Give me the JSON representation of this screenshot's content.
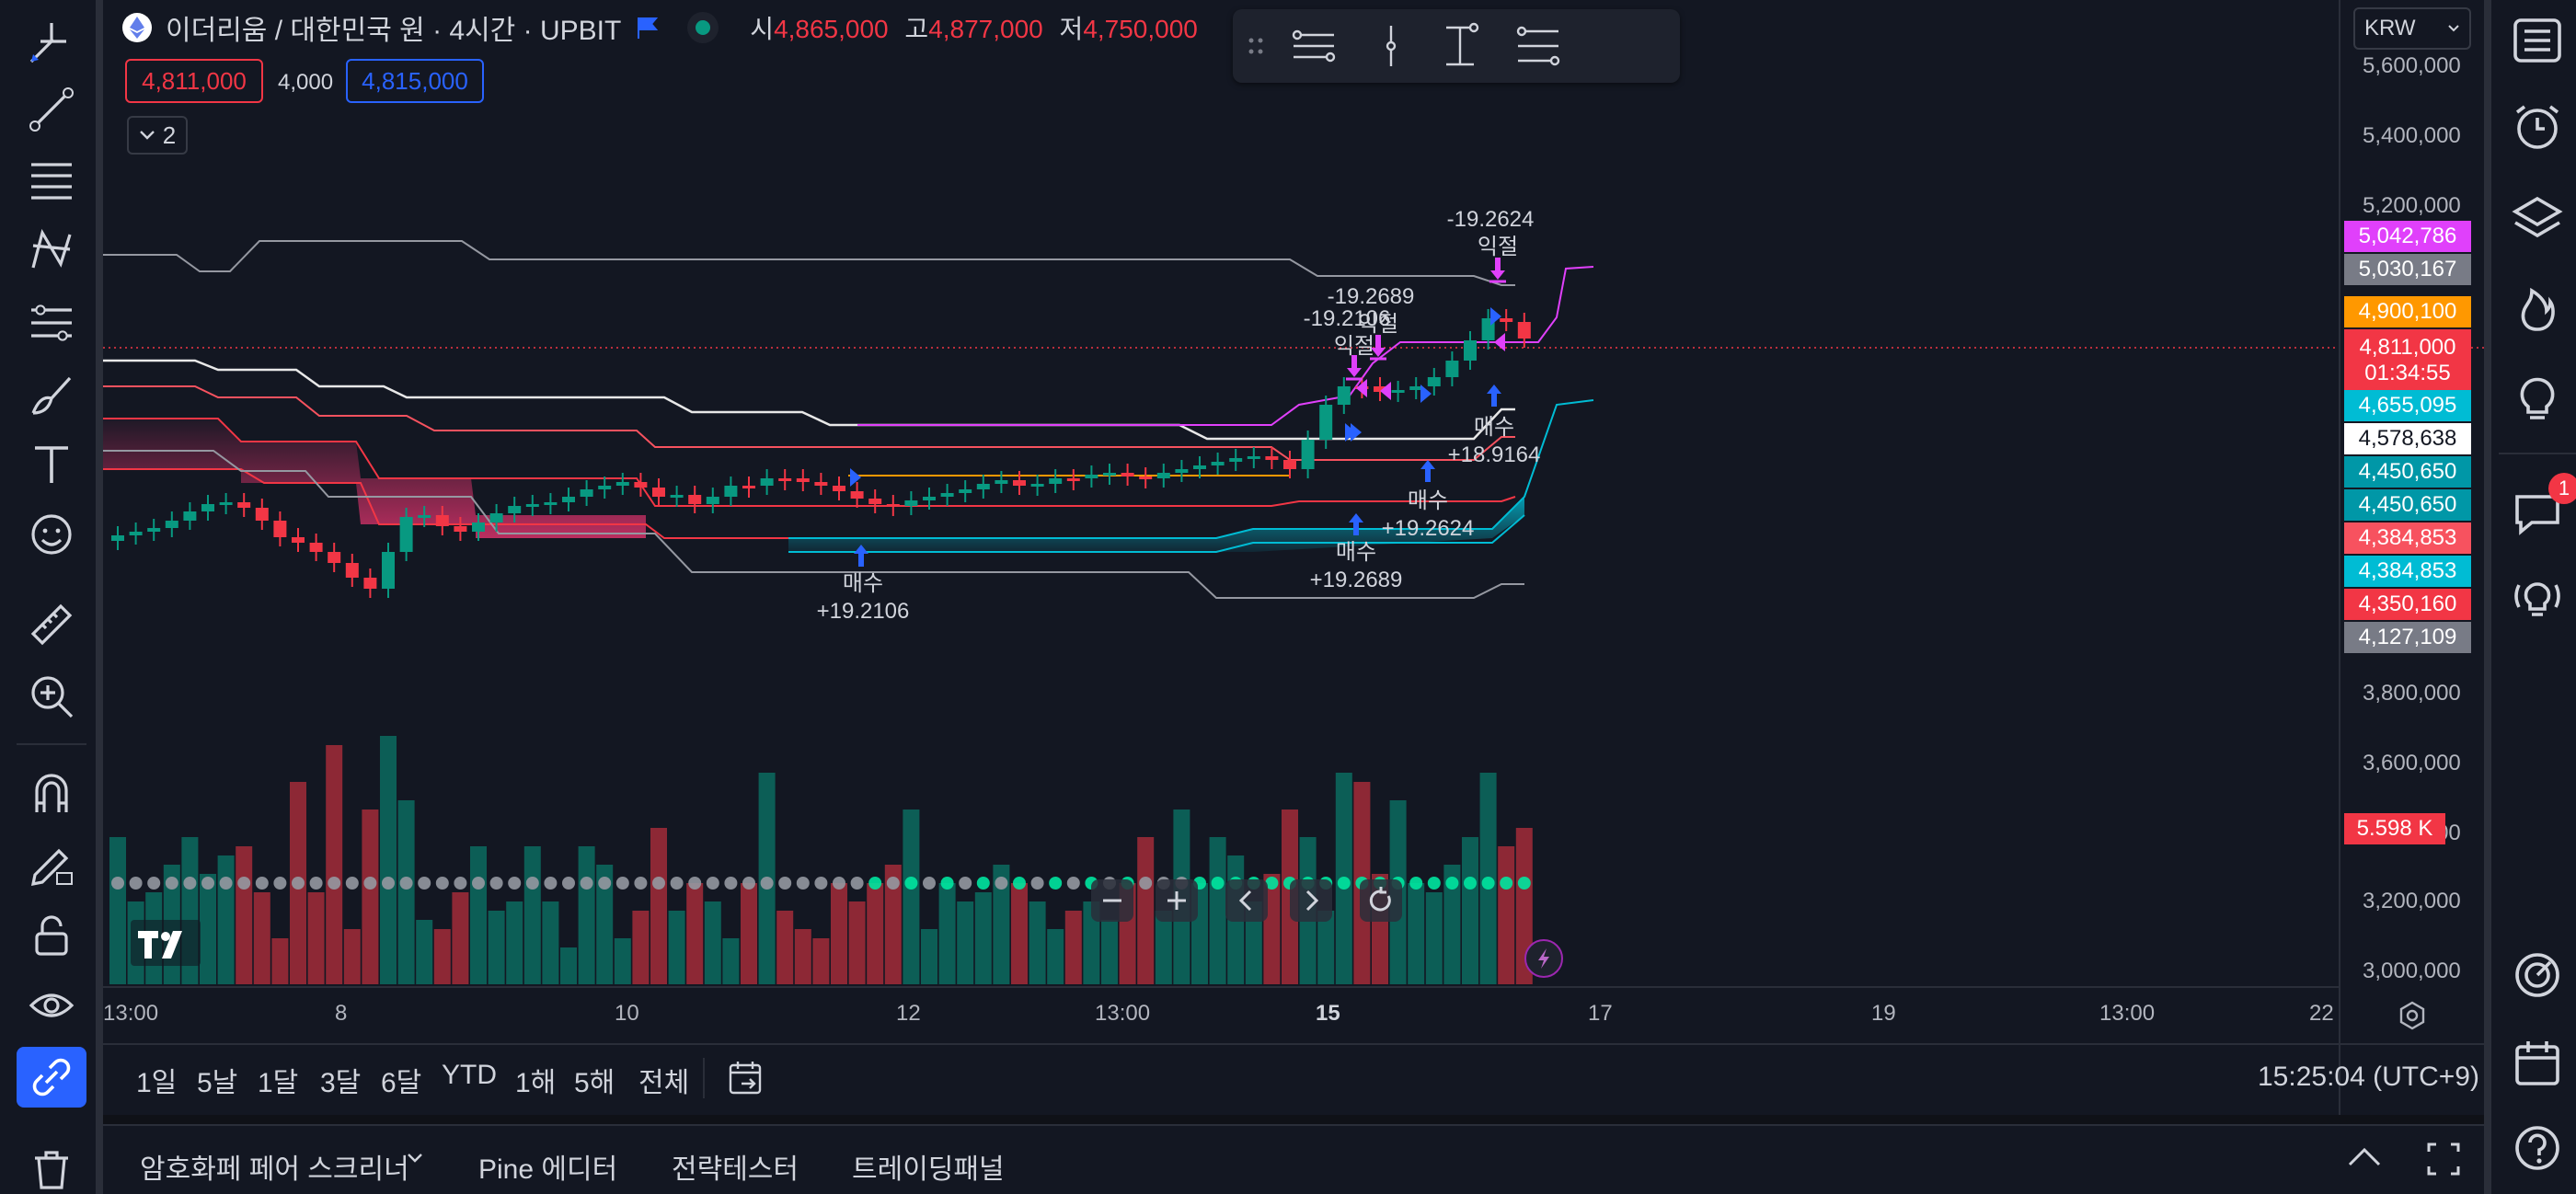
{
  "header": {
    "symbol_title": "이더리움 / 대한민국 원 · 4시간 · UPBIT",
    "open_label": "시",
    "open_value": "4,865,000",
    "high_label": "고",
    "high_value": "4,877,000",
    "low_label": "저",
    "low_value": "4,750,000",
    "sell_price": "4,811,000",
    "spread": "4,000",
    "buy_price": "4,815,000",
    "indicators_count": "2",
    "currency": "KRW"
  },
  "price_axis": {
    "ticks": [
      "5,600,000",
      "5,400,000",
      "5,200,000",
      "3,800,000",
      "3,600,000",
      "3,400,000",
      "3,200,000",
      "3,000,000"
    ]
  },
  "price_labels": [
    {
      "text": "5,042,786",
      "color": "#e040fb"
    },
    {
      "text": "5,030,167",
      "color": "#787b86"
    },
    {
      "text": "4,900,100",
      "color": "#ff9800"
    },
    {
      "text": "4,811,000",
      "color": "#f23645",
      "sub": "01:34:55"
    },
    {
      "text": "4,655,095",
      "color": "#00bcd4"
    },
    {
      "text": "4,578,638",
      "color": "#ffffff",
      "dark": true
    },
    {
      "text": "4,450,650",
      "color": "#0097a7"
    },
    {
      "text": "4,450,650",
      "color": "#0097a7"
    },
    {
      "text": "4,384,853",
      "color": "#f7525f"
    },
    {
      "text": "4,384,853",
      "color": "#00bcd4"
    },
    {
      "text": "4,350,160",
      "color": "#f23645"
    },
    {
      "text": "4,127,109",
      "color": "#787b86"
    }
  ],
  "volume_label": {
    "text": "5.598 K",
    "color": "#f23645"
  },
  "time_axis": [
    "13:00",
    "8",
    "10",
    "12",
    "13:00",
    "15",
    "17",
    "19",
    "13:00",
    "22"
  ],
  "trade_markers": [
    {
      "label": "매수",
      "value": "+19.2106"
    },
    {
      "label": "매수",
      "value": "+19.2689"
    },
    {
      "label": "매수",
      "value": "+19.2624"
    },
    {
      "label": "매수",
      "value": "+18.9164"
    },
    {
      "label": "익절",
      "value": "-19.2106"
    },
    {
      "label": "익절",
      "value": "-19.2689"
    },
    {
      "label": "익절",
      "value": "-19.2624"
    }
  ],
  "range_buttons": [
    "1일",
    "5날",
    "1달",
    "3달",
    "6달",
    "YTD",
    "1해",
    "5해",
    "전체"
  ],
  "clock": "15:25:04 (UTC+9)",
  "panel_tabs": [
    "암호화페 페어 스크리너",
    "Pine 에디터",
    "전략테스터",
    "트레이딩패널"
  ],
  "notification_count": "1",
  "colors": {
    "up": "#089981",
    "down": "#f23645",
    "background": "#131722",
    "accent": "#2962ff"
  }
}
